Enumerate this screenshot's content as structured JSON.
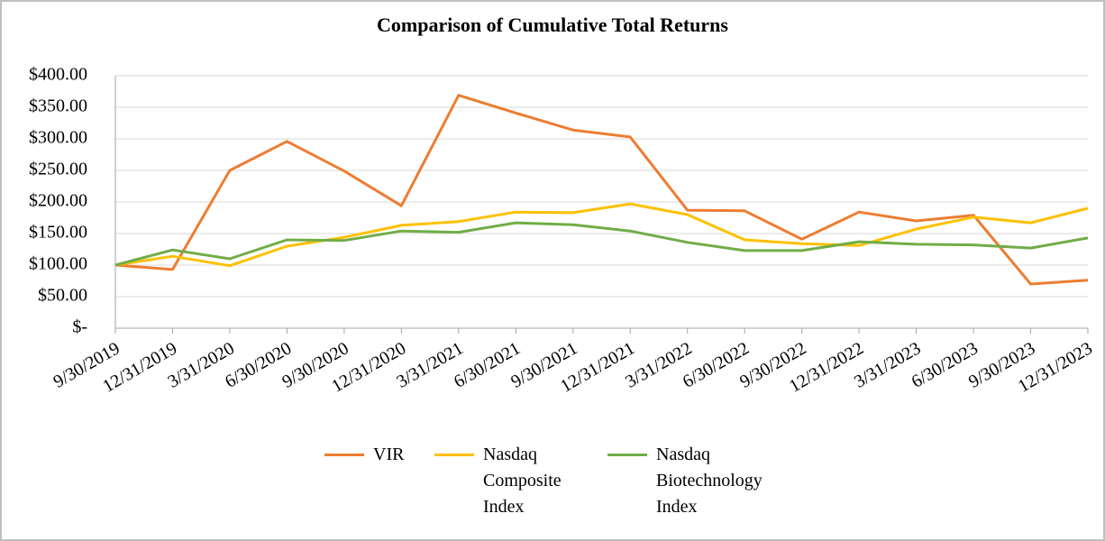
{
  "chart_data": {
    "type": "line",
    "title": "Comparison of Cumulative Total Returns",
    "categories": [
      "9/30/2019",
      "12/31/2019",
      "3/31/2020",
      "6/30/2020",
      "9/30/2020",
      "12/31/2020",
      "3/31/2021",
      "6/30/2021",
      "9/30/2021",
      "12/31/2021",
      "3/31/2022",
      "6/30/2022",
      "9/30/2022",
      "12/31/2022",
      "3/31/2023",
      "6/30/2023",
      "9/30/2023",
      "12/31/2023"
    ],
    "series": [
      {
        "name": "VIR",
        "color": "#ed7d31",
        "values": [
          100,
          93,
          250,
          296,
          249,
          194,
          369,
          341,
          314,
          303,
          187,
          186,
          141,
          184,
          170,
          179,
          70,
          76
        ]
      },
      {
        "name": "Nasdaq Composite Index",
        "color": "#ffc000",
        "values": [
          100,
          114,
          99,
          130,
          144,
          163,
          169,
          184,
          183,
          197,
          180,
          140,
          134,
          131,
          157,
          176,
          167,
          190
        ]
      },
      {
        "name": "Nasdaq Biotechnology Index",
        "color": "#70ad47",
        "values": [
          100,
          124,
          110,
          140,
          139,
          154,
          152,
          167,
          164,
          154,
          136,
          123,
          123,
          137,
          133,
          132,
          127,
          143
        ]
      }
    ],
    "ylim": [
      0,
      400
    ],
    "yticks": [
      {
        "value": 0,
        "label": "$-"
      },
      {
        "value": 50,
        "label": "$50.00"
      },
      {
        "value": 100,
        "label": "$100.00"
      },
      {
        "value": 150,
        "label": "$150.00"
      },
      {
        "value": 200,
        "label": "$200.00"
      },
      {
        "value": 250,
        "label": "$250.00"
      },
      {
        "value": 300,
        "label": "$300.00"
      },
      {
        "value": 350,
        "label": "$350.00"
      },
      {
        "value": 400,
        "label": "$400.00"
      }
    ],
    "grid": true,
    "legend": "bottom"
  }
}
